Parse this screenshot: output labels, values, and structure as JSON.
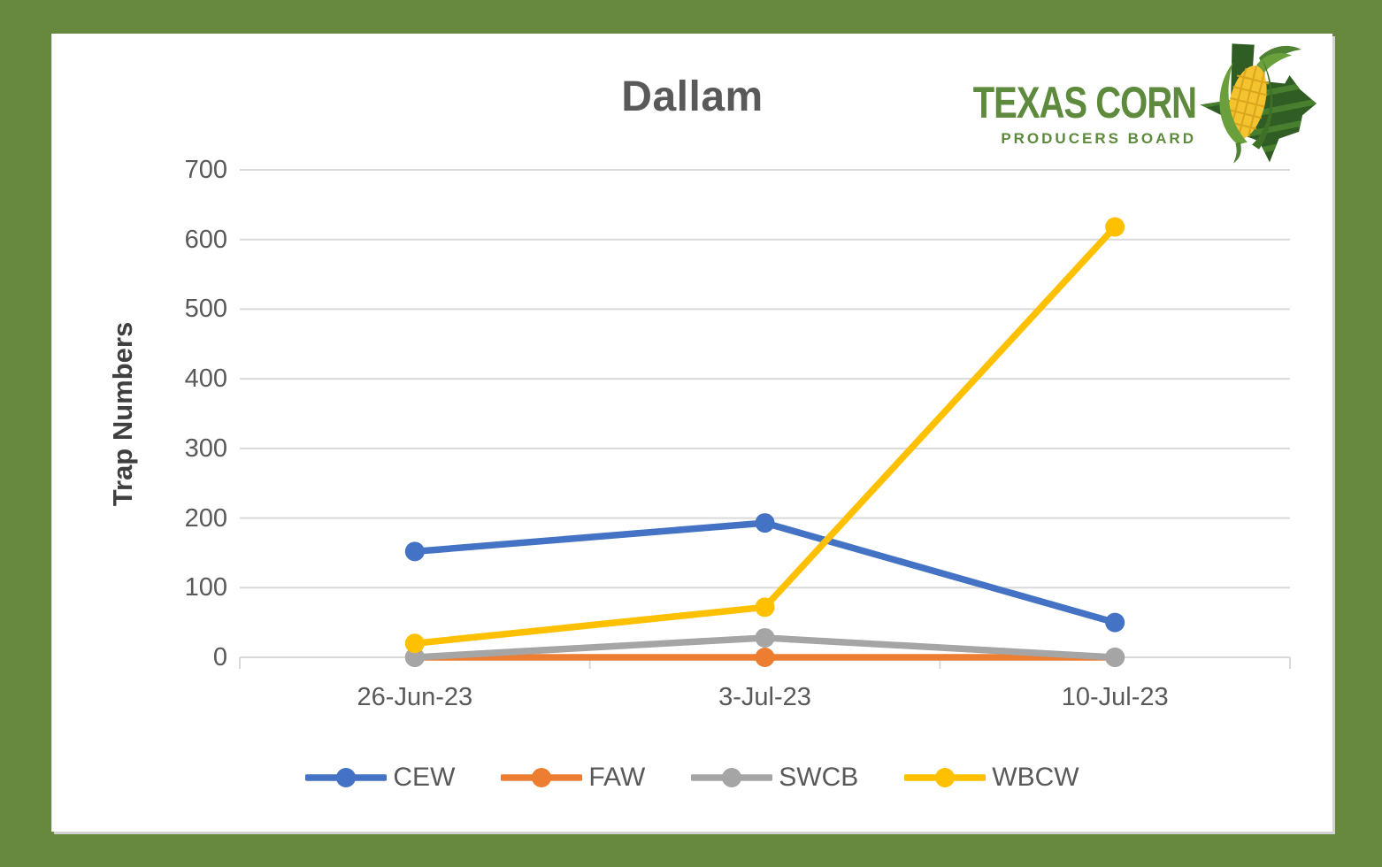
{
  "page": {
    "background_color": "#66893D",
    "card_color": "#FFFFFF"
  },
  "logo": {
    "line1": "TEXAS CORN",
    "line2": "PRODUCERS BOARD",
    "text_color": "#5D8A3C"
  },
  "chart_data": {
    "type": "line",
    "title": "Dallam",
    "ylabel": "Trap Numbers",
    "xlabel": "",
    "categories": [
      "26-Jun-23",
      "3-Jul-23",
      "10-Jul-23"
    ],
    "series": [
      {
        "name": "CEW",
        "color": "#4472C4",
        "values": [
          152,
          193,
          50
        ]
      },
      {
        "name": "FAW",
        "color": "#ED7D31",
        "values": [
          0,
          0,
          0
        ]
      },
      {
        "name": "SWCB",
        "color": "#A5A5A5",
        "values": [
          0,
          28,
          0
        ]
      },
      {
        "name": "WBCW",
        "color": "#FFC000",
        "values": [
          20,
          72,
          618
        ]
      }
    ],
    "ylim": [
      0,
      700
    ],
    "yticks": [
      0,
      100,
      200,
      300,
      400,
      500,
      600,
      700
    ],
    "grid": true,
    "legend_position": "bottom",
    "gridline_color": "#D9D9D9",
    "axis_color": "#D9D9D9",
    "tick_label_color": "#595959",
    "title_color": "#595959",
    "axis_title_color": "#3F3F3F"
  }
}
